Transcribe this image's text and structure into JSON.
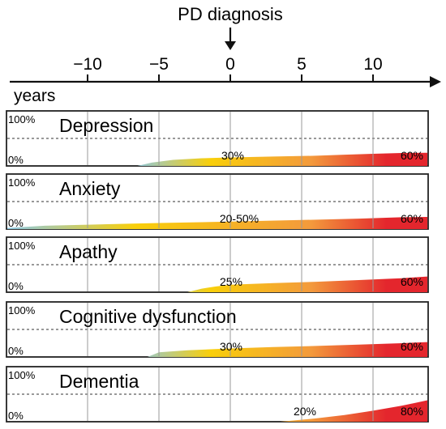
{
  "header": {
    "diagnosis_label": "PD diagnosis",
    "tick_labels": [
      "−10",
      "−5",
      "0",
      "5",
      "10"
    ],
    "tick_values": [
      -10,
      -5,
      0,
      5,
      10
    ],
    "axis_label": "years"
  },
  "axis": {
    "x_min": -16,
    "x_max": 14.2
  },
  "colors": {
    "start": "#8ec8e0",
    "mid": "#f9cf0a",
    "orange": "#f39a3c",
    "end": "#e4262d",
    "frame": "#222222",
    "gridline": "#9a9a9a"
  },
  "panels": [
    {
      "title": "Depression",
      "top_label": "100%",
      "bottom_label": "0%",
      "early_value": "30%",
      "late_value": "60%",
      "curve": [
        [
          -6.5,
          0.0
        ],
        [
          -5.5,
          0.12
        ],
        [
          -4,
          0.22
        ],
        [
          -2,
          0.28
        ],
        [
          0,
          0.31
        ],
        [
          3,
          0.34
        ],
        [
          6,
          0.37
        ],
        [
          8,
          0.41
        ],
        [
          10,
          0.44
        ],
        [
          12,
          0.47
        ],
        [
          14.2,
          0.48
        ]
      ]
    },
    {
      "title": "Anxiety",
      "top_label": "100%",
      "bottom_label": "0%",
      "early_value": "20-50%",
      "late_value": "60%",
      "curve": [
        [
          -16,
          0.04
        ],
        [
          -13,
          0.12
        ],
        [
          -10,
          0.16
        ],
        [
          -5,
          0.22
        ],
        [
          0,
          0.27
        ],
        [
          5,
          0.33
        ],
        [
          9,
          0.38
        ],
        [
          12,
          0.43
        ],
        [
          14.2,
          0.44
        ]
      ]
    },
    {
      "title": "Apathy",
      "top_label": "100%",
      "bottom_label": "0%",
      "early_value": "25%",
      "late_value": "60%",
      "curve": [
        [
          -3,
          0.0
        ],
        [
          -2,
          0.13
        ],
        [
          -1,
          0.21
        ],
        [
          0,
          0.27
        ],
        [
          3,
          0.33
        ],
        [
          6,
          0.38
        ],
        [
          9,
          0.44
        ],
        [
          12,
          0.51
        ],
        [
          14.2,
          0.57
        ]
      ]
    },
    {
      "title": "Cognitive dysfunction",
      "top_label": "100%",
      "bottom_label": "0%",
      "early_value": "30%",
      "late_value": "60%",
      "curve": [
        [
          -5.8,
          0.0
        ],
        [
          -5,
          0.17
        ],
        [
          -3,
          0.24
        ],
        [
          0,
          0.31
        ],
        [
          3,
          0.36
        ],
        [
          6,
          0.4
        ],
        [
          9,
          0.45
        ],
        [
          12,
          0.5
        ],
        [
          14.2,
          0.54
        ]
      ]
    },
    {
      "title": "Dementia",
      "top_label": "100%",
      "bottom_label": "0%",
      "early_value": "20%",
      "late_value": "80%",
      "curve": [
        [
          3.5,
          0.0
        ],
        [
          6,
          0.12
        ],
        [
          8,
          0.24
        ],
        [
          10,
          0.4
        ],
        [
          12,
          0.58
        ],
        [
          14.2,
          0.78
        ]
      ]
    }
  ]
}
